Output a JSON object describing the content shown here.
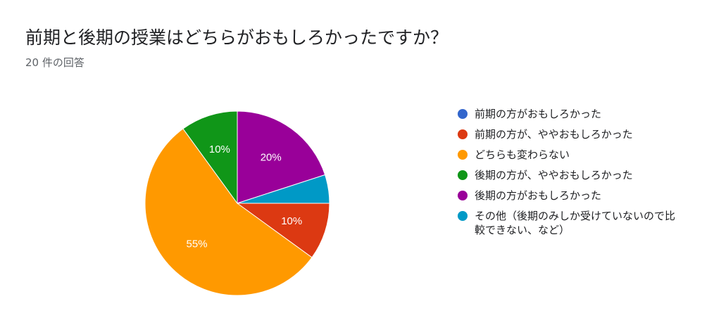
{
  "header": {
    "title": "前期と後期の授業はどちらがおもしろかったですか？",
    "response_count": "20 件の回答"
  },
  "chart_data": {
    "type": "pie",
    "legend_position": "right",
    "slices": [
      {
        "label": "前期の方がおもしろかった",
        "value": 0,
        "color": "#3366cc",
        "display": ""
      },
      {
        "label": "前期の方が、ややおもしろかった",
        "value": 10,
        "color": "#dc3912",
        "display": "10%"
      },
      {
        "label": "どちらも変わらない",
        "value": 55,
        "color": "#ff9900",
        "display": "55%"
      },
      {
        "label": "後期の方が、ややおもしろかった",
        "value": 10,
        "color": "#109618",
        "display": "10%"
      },
      {
        "label": "後期の方がおもしろかった",
        "value": 20,
        "color": "#990099",
        "display": "20%"
      },
      {
        "label": "その他（後期のみしか受けていないので比較できない、など）",
        "value": 5,
        "color": "#0099c6",
        "display": ""
      }
    ]
  }
}
